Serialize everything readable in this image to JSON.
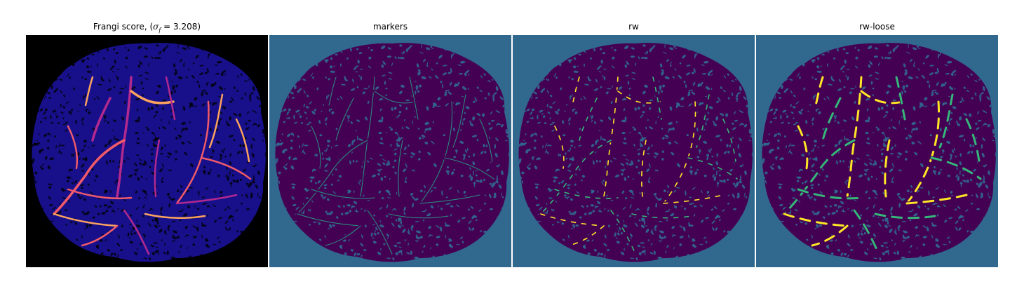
{
  "panels": [
    {
      "title_prefix": "Frangi score, (",
      "title_math": "σ",
      "title_sub": "f",
      "title_suffix": " = 3.208)",
      "background": "#000000",
      "tissue_color": "#17108a",
      "texture_color": "#000000",
      "vessel_colors": [
        "#b1298f",
        "#f05a6a",
        "#fca35e"
      ]
    },
    {
      "title": "markers",
      "background": "#31688e",
      "tissue_color": "#440154",
      "texture_color": "#31688e",
      "vessel_colors": [
        "#35b779",
        "#26a384"
      ]
    },
    {
      "title": "rw",
      "background": "#31688e",
      "tissue_color": "#440154",
      "texture_color": "#31688e",
      "vessel_colors": [
        "#fde725",
        "#35b779"
      ]
    },
    {
      "title": "rw-loose",
      "background": "#31688e",
      "tissue_color": "#440154",
      "texture_color": "#31688e",
      "vessel_colors": [
        "#fde725",
        "#35b779"
      ]
    }
  ]
}
